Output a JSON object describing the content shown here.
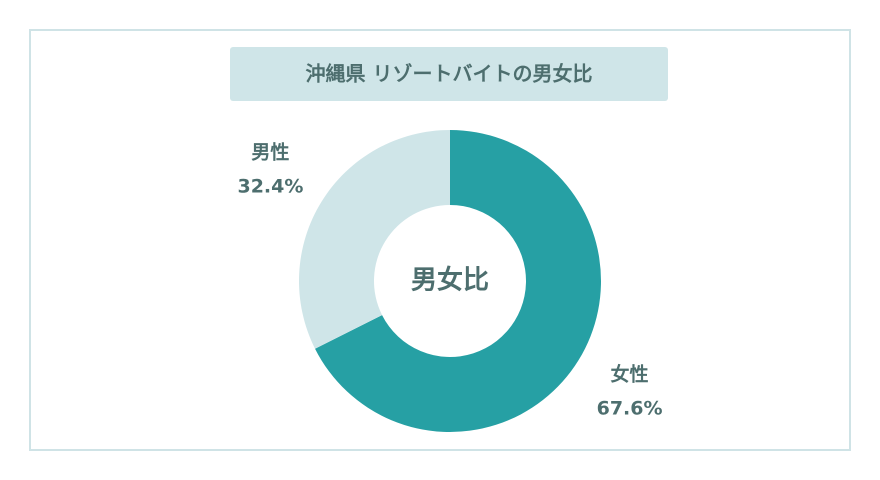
{
  "chart_data": {
    "type": "pie",
    "donut": true,
    "title": "沖縄県 リゾートバイトの男女比",
    "center_label": "男女比",
    "categories": [
      "女性",
      "男性"
    ],
    "values": [
      67.6,
      32.4
    ],
    "value_labels": [
      "67.6%",
      "32.4%"
    ],
    "colors": [
      "#26a0a4",
      "#cfe5e8"
    ]
  }
}
